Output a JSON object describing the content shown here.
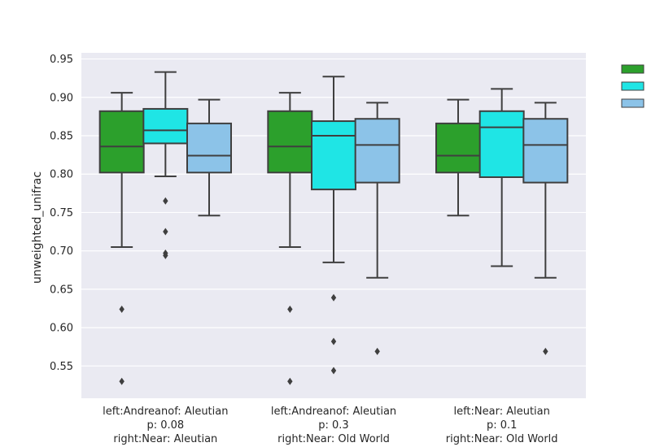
{
  "chart_data": {
    "type": "box",
    "ylabel": "unweighted_unifrac",
    "xlabel": "",
    "ylim": [
      0.508,
      0.958
    ],
    "yticks": [
      "0.55",
      "0.60",
      "0.65",
      "0.70",
      "0.75",
      "0.80",
      "0.85",
      "0.90",
      "0.95"
    ],
    "grid": true,
    "legend_position": "right",
    "categories": [
      {
        "lines": [
          "left:Andreanof: Aleutian",
          "p: 0.08",
          "right:Near: Aleutian"
        ]
      },
      {
        "lines": [
          "left:Andreanof: Aleutian",
          "p: 0.3",
          "right:Near: Old World"
        ]
      },
      {
        "lines": [
          "left:Near: Aleutian",
          "p: 0.1",
          "right:Near: Old World"
        ]
      }
    ],
    "series": [
      {
        "color": "#2ca02c",
        "legend_label": ""
      },
      {
        "color": "#1fe5e5",
        "legend_label": ""
      },
      {
        "color": "#8cc3e8",
        "legend_label": ""
      }
    ],
    "boxes": [
      [
        {
          "whisker_low": 0.705,
          "q1": 0.802,
          "median": 0.836,
          "q3": 0.882,
          "whisker_high": 0.906,
          "outliers": [
            0.624,
            0.53
          ]
        },
        {
          "whisker_low": 0.797,
          "q1": 0.84,
          "median": 0.857,
          "q3": 0.885,
          "whisker_high": 0.933,
          "outliers": [
            0.765,
            0.725,
            0.697,
            0.694
          ]
        },
        {
          "whisker_low": 0.746,
          "q1": 0.802,
          "median": 0.824,
          "q3": 0.866,
          "whisker_high": 0.897,
          "outliers": []
        }
      ],
      [
        {
          "whisker_low": 0.705,
          "q1": 0.802,
          "median": 0.836,
          "q3": 0.882,
          "whisker_high": 0.906,
          "outliers": [
            0.624,
            0.53
          ]
        },
        {
          "whisker_low": 0.685,
          "q1": 0.78,
          "median": 0.85,
          "q3": 0.869,
          "whisker_high": 0.927,
          "outliers": [
            0.639,
            0.582,
            0.544
          ]
        },
        {
          "whisker_low": 0.665,
          "q1": 0.789,
          "median": 0.838,
          "q3": 0.872,
          "whisker_high": 0.893,
          "outliers": [
            0.569
          ]
        }
      ],
      [
        {
          "whisker_low": 0.746,
          "q1": 0.802,
          "median": 0.824,
          "q3": 0.866,
          "whisker_high": 0.897,
          "outliers": []
        },
        {
          "whisker_low": 0.68,
          "q1": 0.796,
          "median": 0.861,
          "q3": 0.882,
          "whisker_high": 0.911,
          "outliers": []
        },
        {
          "whisker_low": 0.665,
          "q1": 0.789,
          "median": 0.838,
          "q3": 0.872,
          "whisker_high": 0.893,
          "outliers": [
            0.569
          ]
        }
      ]
    ]
  }
}
